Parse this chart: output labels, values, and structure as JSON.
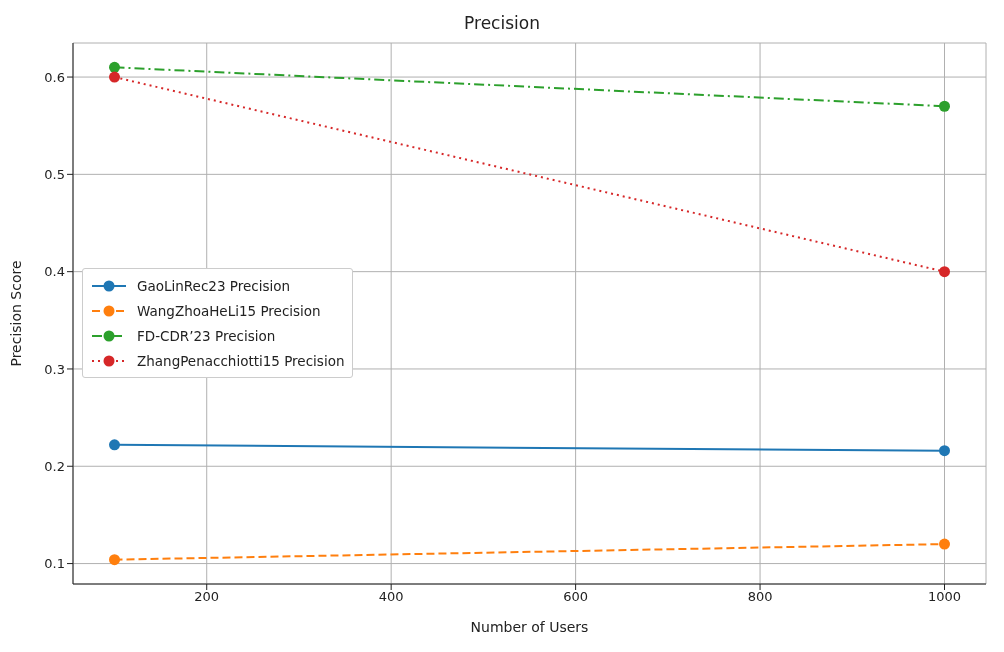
{
  "chart_data": {
    "type": "line",
    "title": "Precision",
    "xlabel": "Number of Users",
    "ylabel": "Precision Score",
    "x": [
      100,
      1000
    ],
    "series": [
      {
        "name": "GaoLinRec23 Precision",
        "color": "#1f77b4",
        "values": [
          0.222,
          0.216
        ],
        "line_style": "solid"
      },
      {
        "name": "WangZhoaHeLi15 Precision",
        "color": "#ff7f0e",
        "values": [
          0.104,
          0.12
        ],
        "line_style": "dashed"
      },
      {
        "name": "FD-CDR’23 Precision",
        "color": "#2ca02c",
        "values": [
          0.61,
          0.57
        ],
        "line_style": "dashdot"
      },
      {
        "name": "ZhangPenacchiotti15 Precision",
        "color": "#d62728",
        "values": [
          0.6,
          0.4
        ],
        "line_style": "dotted"
      }
    ],
    "xlim": [
      55,
      1045
    ],
    "xticks": [
      200,
      400,
      600,
      800,
      1000
    ],
    "ylim": [
      0.079,
      0.635
    ],
    "yticks": [
      0.1,
      0.2,
      0.3,
      0.4,
      0.5,
      0.6
    ],
    "grid": true,
    "legend": "left",
    "marker": "circle"
  }
}
